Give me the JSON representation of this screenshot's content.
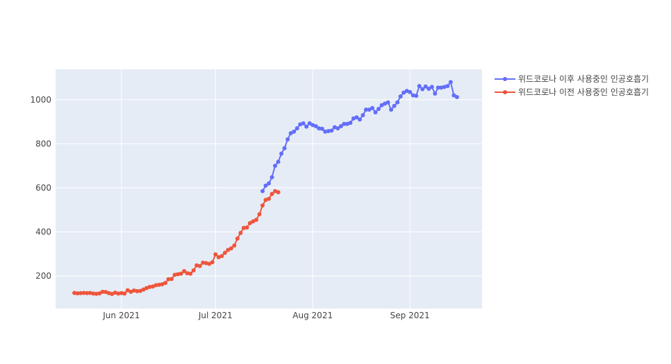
{
  "chart_data": {
    "type": "line",
    "title": "",
    "xlabel": "",
    "ylabel": "",
    "x_range": [
      "2021-05-11",
      "2021-09-24"
    ],
    "ylim": [
      52,
      1138
    ],
    "x_ticks": [
      {
        "date": "2021-06-01",
        "label": "Jun 2021"
      },
      {
        "date": "2021-07-01",
        "label": "Jul 2021"
      },
      {
        "date": "2021-08-01",
        "label": "Aug 2021"
      },
      {
        "date": "2021-09-01",
        "label": "Sep 2021"
      }
    ],
    "y_ticks": [
      200,
      400,
      600,
      800,
      1000
    ],
    "grid": true,
    "legend_position": "top-right",
    "plot_background": "#e5ecf6",
    "series": [
      {
        "name": "위드코로나 이후 사용중인 인공호흡기",
        "color": "#636efa",
        "points": [
          [
            "2021-07-16",
            585
          ],
          [
            "2021-07-17",
            610
          ],
          [
            "2021-07-18",
            620
          ],
          [
            "2021-07-19",
            648
          ],
          [
            "2021-07-20",
            700
          ],
          [
            "2021-07-21",
            718
          ],
          [
            "2021-07-22",
            755
          ],
          [
            "2021-07-23",
            780
          ],
          [
            "2021-07-24",
            820
          ],
          [
            "2021-07-25",
            848
          ],
          [
            "2021-07-26",
            855
          ],
          [
            "2021-07-27",
            870
          ],
          [
            "2021-07-28",
            888
          ],
          [
            "2021-07-29",
            893
          ],
          [
            "2021-07-30",
            878
          ],
          [
            "2021-07-31",
            893
          ],
          [
            "2021-08-01",
            885
          ],
          [
            "2021-08-02",
            880
          ],
          [
            "2021-08-03",
            870
          ],
          [
            "2021-08-04",
            868
          ],
          [
            "2021-08-05",
            855
          ],
          [
            "2021-08-06",
            858
          ],
          [
            "2021-08-07",
            860
          ],
          [
            "2021-08-08",
            875
          ],
          [
            "2021-08-09",
            870
          ],
          [
            "2021-08-10",
            880
          ],
          [
            "2021-08-11",
            890
          ],
          [
            "2021-08-12",
            890
          ],
          [
            "2021-08-13",
            895
          ],
          [
            "2021-08-14",
            915
          ],
          [
            "2021-08-15",
            920
          ],
          [
            "2021-08-16",
            910
          ],
          [
            "2021-08-17",
            930
          ],
          [
            "2021-08-18",
            955
          ],
          [
            "2021-08-19",
            955
          ],
          [
            "2021-08-20",
            962
          ],
          [
            "2021-08-21",
            943
          ],
          [
            "2021-08-22",
            958
          ],
          [
            "2021-08-23",
            975
          ],
          [
            "2021-08-24",
            982
          ],
          [
            "2021-08-25",
            988
          ],
          [
            "2021-08-26",
            955
          ],
          [
            "2021-08-27",
            972
          ],
          [
            "2021-08-28",
            988
          ],
          [
            "2021-08-29",
            1015
          ],
          [
            "2021-08-30",
            1032
          ],
          [
            "2021-08-31",
            1040
          ],
          [
            "2021-09-01",
            1035
          ],
          [
            "2021-09-02",
            1020
          ],
          [
            "2021-09-03",
            1018
          ],
          [
            "2021-09-04",
            1062
          ],
          [
            "2021-09-05",
            1048
          ],
          [
            "2021-09-06",
            1060
          ],
          [
            "2021-09-07",
            1050
          ],
          [
            "2021-09-08",
            1058
          ],
          [
            "2021-09-09",
            1028
          ],
          [
            "2021-09-10",
            1055
          ],
          [
            "2021-09-11",
            1055
          ],
          [
            "2021-09-12",
            1058
          ],
          [
            "2021-09-13",
            1062
          ],
          [
            "2021-09-14",
            1080
          ],
          [
            "2021-09-15",
            1020
          ],
          [
            "2021-09-16",
            1012
          ]
        ]
      },
      {
        "name": "위드코로나 이전 사용중인 인공호흡기",
        "color": "#ef553b",
        "points": [
          [
            "2021-05-17",
            123
          ],
          [
            "2021-05-18",
            121
          ],
          [
            "2021-05-19",
            122
          ],
          [
            "2021-05-20",
            123
          ],
          [
            "2021-05-21",
            122
          ],
          [
            "2021-05-22",
            123
          ],
          [
            "2021-05-23",
            120
          ],
          [
            "2021-05-24",
            119
          ],
          [
            "2021-05-25",
            121
          ],
          [
            "2021-05-26",
            128
          ],
          [
            "2021-05-27",
            127
          ],
          [
            "2021-05-28",
            122
          ],
          [
            "2021-05-29",
            118
          ],
          [
            "2021-05-30",
            124
          ],
          [
            "2021-05-31",
            120
          ],
          [
            "2021-06-01",
            122
          ],
          [
            "2021-06-02",
            120
          ],
          [
            "2021-06-03",
            135
          ],
          [
            "2021-06-04",
            128
          ],
          [
            "2021-06-05",
            134
          ],
          [
            "2021-06-06",
            131
          ],
          [
            "2021-06-07",
            132
          ],
          [
            "2021-06-08",
            138
          ],
          [
            "2021-06-09",
            145
          ],
          [
            "2021-06-10",
            150
          ],
          [
            "2021-06-11",
            152
          ],
          [
            "2021-06-12",
            158
          ],
          [
            "2021-06-13",
            160
          ],
          [
            "2021-06-14",
            162
          ],
          [
            "2021-06-15",
            168
          ],
          [
            "2021-06-16",
            185
          ],
          [
            "2021-06-17",
            186
          ],
          [
            "2021-06-18",
            205
          ],
          [
            "2021-06-19",
            208
          ],
          [
            "2021-06-20",
            210
          ],
          [
            "2021-06-21",
            222
          ],
          [
            "2021-06-22",
            212
          ],
          [
            "2021-06-23",
            210
          ],
          [
            "2021-06-24",
            225
          ],
          [
            "2021-06-25",
            248
          ],
          [
            "2021-06-26",
            245
          ],
          [
            "2021-06-27",
            260
          ],
          [
            "2021-06-28",
            258
          ],
          [
            "2021-06-29",
            255
          ],
          [
            "2021-06-30",
            262
          ],
          [
            "2021-07-01",
            298
          ],
          [
            "2021-07-02",
            285
          ],
          [
            "2021-07-03",
            290
          ],
          [
            "2021-07-04",
            305
          ],
          [
            "2021-07-05",
            318
          ],
          [
            "2021-07-06",
            325
          ],
          [
            "2021-07-07",
            338
          ],
          [
            "2021-07-08",
            370
          ],
          [
            "2021-07-09",
            395
          ],
          [
            "2021-07-10",
            418
          ],
          [
            "2021-07-11",
            420
          ],
          [
            "2021-07-12",
            440
          ],
          [
            "2021-07-13",
            448
          ],
          [
            "2021-07-14",
            455
          ],
          [
            "2021-07-15",
            480
          ],
          [
            "2021-07-16",
            520
          ],
          [
            "2021-07-17",
            545
          ],
          [
            "2021-07-18",
            550
          ],
          [
            "2021-07-19",
            572
          ],
          [
            "2021-07-20",
            585
          ],
          [
            "2021-07-21",
            580
          ]
        ]
      }
    ]
  }
}
